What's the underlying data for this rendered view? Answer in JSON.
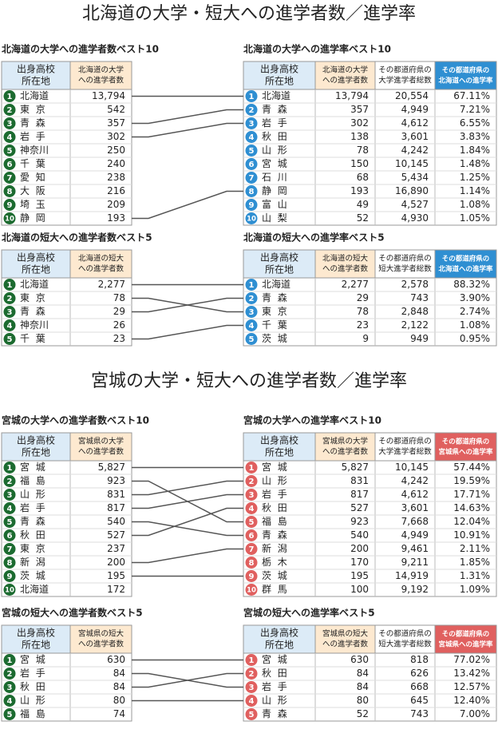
{
  "sections": [
    {
      "title": "北海道の大学・短大への進学者数／進学率",
      "left_color": "#1c6b30",
      "accent": "#2f8fd2",
      "blocks": [
        {
          "left": {
            "title": "北海道の大学への進学者数ベスト10",
            "headers": [
              [
                "出身高校",
                "所在地"
              ],
              [
                "北海道の大学",
                "への進学者数"
              ]
            ],
            "rows": [
              [
                1,
                "北海道",
                "13,794"
              ],
              [
                2,
                "東京",
                "542"
              ],
              [
                3,
                "青森",
                "357"
              ],
              [
                4,
                "岩手",
                "302"
              ],
              [
                5,
                "神奈川",
                "250"
              ],
              [
                6,
                "千葉",
                "240"
              ],
              [
                7,
                "愛知",
                "238"
              ],
              [
                8,
                "大阪",
                "216"
              ],
              [
                9,
                "埼玉",
                "209"
              ],
              [
                10,
                "静岡",
                "193"
              ]
            ]
          },
          "right": {
            "title": "北海道の大学への進学率ベスト10",
            "headers": [
              [
                "出身高校",
                "所在地"
              ],
              [
                "北海道の大学",
                "への進学者数"
              ],
              [
                "その都道府県の",
                "大学進学者総数"
              ],
              [
                "その都道府県の",
                "北海道への進学率"
              ]
            ],
            "rows": [
              [
                1,
                "北海道",
                "13,794",
                "20,554",
                "67.11%"
              ],
              [
                2,
                "青森",
                "357",
                "4,949",
                "7.21%"
              ],
              [
                3,
                "岩手",
                "302",
                "4,612",
                "6.55%"
              ],
              [
                4,
                "秋田",
                "138",
                "3,601",
                "3.83%"
              ],
              [
                5,
                "山形",
                "78",
                "4,242",
                "1.84%"
              ],
              [
                6,
                "宮城",
                "150",
                "10,145",
                "1.48%"
              ],
              [
                7,
                "石川",
                "68",
                "5,434",
                "1.25%"
              ],
              [
                8,
                "静岡",
                "193",
                "16,890",
                "1.14%"
              ],
              [
                9,
                "富山",
                "49",
                "4,527",
                "1.08%"
              ],
              [
                10,
                "山梨",
                "52",
                "4,930",
                "1.05%"
              ]
            ]
          }
        },
        {
          "left": {
            "title": "北海道の短大への進学者数ベスト5",
            "headers": [
              [
                "出身高校",
                "所在地"
              ],
              [
                "北海道の短大",
                "への進学者数"
              ]
            ],
            "rows": [
              [
                1,
                "北海道",
                "2,277"
              ],
              [
                2,
                "東京",
                "78"
              ],
              [
                3,
                "青森",
                "29"
              ],
              [
                4,
                "神奈川",
                "26"
              ],
              [
                5,
                "千葉",
                "23"
              ]
            ]
          },
          "right": {
            "title": "北海道の短大への進学率ベスト5",
            "headers": [
              [
                "出身高校",
                "所在地"
              ],
              [
                "北海道の短大",
                "への進学者数"
              ],
              [
                "その都道府県の",
                "短大進学者総数"
              ],
              [
                "その都道府県の",
                "北海道への進学率"
              ]
            ],
            "rows": [
              [
                1,
                "北海道",
                "2,277",
                "2,578",
                "88.32%"
              ],
              [
                2,
                "青森",
                "29",
                "743",
                "3.90%"
              ],
              [
                3,
                "東京",
                "78",
                "2,848",
                "2.74%"
              ],
              [
                4,
                "千葉",
                "23",
                "2,122",
                "1.08%"
              ],
              [
                5,
                "茨城",
                "9",
                "949",
                "0.95%"
              ]
            ]
          }
        }
      ]
    },
    {
      "title": "宮城の大学・短大への進学者数／進学率",
      "left_color": "#1c6b30",
      "accent": "#e0605f",
      "blocks": [
        {
          "left": {
            "title": "宮城の大学への進学者数ベスト10",
            "headers": [
              [
                "出身高校",
                "所在地"
              ],
              [
                "宮城県の大学",
                "への進学者数"
              ]
            ],
            "rows": [
              [
                1,
                "宮城",
                "5,827"
              ],
              [
                2,
                "福島",
                "923"
              ],
              [
                3,
                "山形",
                "831"
              ],
              [
                4,
                "岩手",
                "817"
              ],
              [
                5,
                "青森",
                "540"
              ],
              [
                6,
                "秋田",
                "527"
              ],
              [
                7,
                "東京",
                "237"
              ],
              [
                8,
                "新潟",
                "200"
              ],
              [
                9,
                "茨城",
                "195"
              ],
              [
                10,
                "北海道",
                "172"
              ]
            ]
          },
          "right": {
            "title": "宮城の大学への進学率ベスト10",
            "headers": [
              [
                "出身高校",
                "所在地"
              ],
              [
                "宮城県の大学",
                "への進学者数"
              ],
              [
                "その都道府県の",
                "大学進学者総数"
              ],
              [
                "その都道府県の",
                "宮城県への進学率"
              ]
            ],
            "rows": [
              [
                1,
                "宮城",
                "5,827",
                "10,145",
                "57.44%"
              ],
              [
                2,
                "山形",
                "831",
                "4,242",
                "19.59%"
              ],
              [
                3,
                "岩手",
                "817",
                "4,612",
                "17.71%"
              ],
              [
                4,
                "秋田",
                "527",
                "3,601",
                "14.63%"
              ],
              [
                5,
                "福島",
                "923",
                "7,668",
                "12.04%"
              ],
              [
                6,
                "青森",
                "540",
                "4,949",
                "10.91%"
              ],
              [
                7,
                "新潟",
                "200",
                "9,461",
                "2.11%"
              ],
              [
                8,
                "栃木",
                "170",
                "9,211",
                "1.85%"
              ],
              [
                9,
                "茨城",
                "195",
                "14,919",
                "1.31%"
              ],
              [
                10,
                "群馬",
                "100",
                "9,192",
                "1.09%"
              ]
            ]
          }
        },
        {
          "left": {
            "title": "宮城の短大への進学者数ベスト5",
            "headers": [
              [
                "出身高校",
                "所在地"
              ],
              [
                "宮城県の短大",
                "への進学者数"
              ]
            ],
            "rows": [
              [
                1,
                "宮城",
                "630"
              ],
              [
                2,
                "岩手",
                "84"
              ],
              [
                3,
                "秋田",
                "84"
              ],
              [
                4,
                "山形",
                "80"
              ],
              [
                5,
                "福島",
                "74"
              ]
            ]
          },
          "right": {
            "title": "宮城の短大への進学率ベスト5",
            "headers": [
              [
                "出身高校",
                "所在地"
              ],
              [
                "宮城県の短大",
                "への進学者数"
              ],
              [
                "その都道府県の",
                "短大進学者総数"
              ],
              [
                "その都道府県の",
                "宮城県への進学率"
              ]
            ],
            "rows": [
              [
                1,
                "宮城",
                "630",
                "818",
                "77.02%"
              ],
              [
                2,
                "秋田",
                "84",
                "626",
                "13.42%"
              ],
              [
                3,
                "岩手",
                "84",
                "668",
                "12.57%"
              ],
              [
                4,
                "山形",
                "80",
                "645",
                "12.40%"
              ],
              [
                5,
                "青森",
                "52",
                "743",
                "7.00%"
              ]
            ]
          }
        }
      ]
    }
  ]
}
